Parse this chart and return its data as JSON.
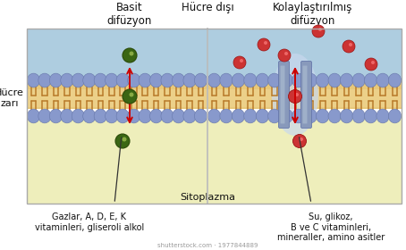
{
  "title_left": "Basit\ndifüzyon",
  "title_center": "Hücre dışı",
  "title_right": "Kolaylaştırılmış\ndifüzyon",
  "label_left_side": "Hücre\nzarı",
  "label_bottom_left": "Gazlar, A, D, E, K\nvitaminleri, gliseroli alkol",
  "label_bottom_center": "Sitoplazma",
  "label_bottom_right": "Su, glikoz,\nB ve C vitaminleri,\nmineraller, amino asitler",
  "watermark": "shutterstock.com · 1977844889",
  "bg_top_color": "#aecde0",
  "bg_bottom_color": "#eeeebb",
  "membrane_head_color": "#8899cc",
  "membrane_tail_bg": "#e8c87a",
  "protein_channel_color": "#8899bb",
  "protein_channel_light": "#aabbd0",
  "green_color": "#3a6614",
  "green_edge": "#2a4a08",
  "red_color": "#cc3333",
  "red_edge": "#991111",
  "arrow_color": "#cc0000",
  "divider_color": "#bbbbbb",
  "text_color": "#111111",
  "border_color": "#aaaaaa",
  "fig_bg": "#ffffff"
}
